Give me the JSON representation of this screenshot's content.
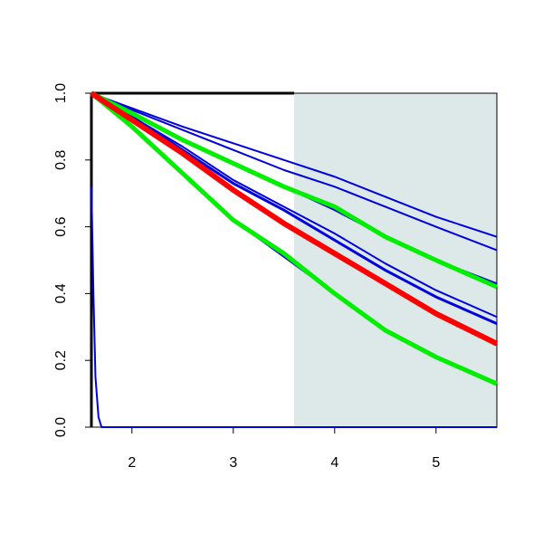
{
  "chart_data": {
    "type": "line",
    "x": [
      1.6,
      2.0,
      2.5,
      3.0,
      3.5,
      4.0,
      4.5,
      5.0,
      5.6
    ],
    "series": [
      {
        "color": "#0000dd",
        "width": 2,
        "values": [
          1,
          0.955,
          0.9,
          0.85,
          0.8,
          0.75,
          0.69,
          0.63,
          0.57
        ]
      },
      {
        "color": "#0000dd",
        "width": 2,
        "values": [
          1,
          0.95,
          0.89,
          0.83,
          0.77,
          0.72,
          0.66,
          0.6,
          0.53
        ]
      },
      {
        "color": "#0000dd",
        "width": 2,
        "values": [
          1,
          0.94,
          0.86,
          0.79,
          0.72,
          0.65,
          0.57,
          0.5,
          0.43
        ]
      },
      {
        "color": "#0000dd",
        "width": 2,
        "values": [
          1,
          0.93,
          0.84,
          0.74,
          0.66,
          0.58,
          0.49,
          0.41,
          0.33
        ]
      },
      {
        "color": "#0000dd",
        "width": 3,
        "values": [
          1,
          0.93,
          0.83,
          0.73,
          0.65,
          0.56,
          0.47,
          0.39,
          0.31
        ]
      },
      {
        "color": "#0000dd",
        "width": 2,
        "values": [
          1,
          0.9,
          0.76,
          0.62,
          0.51,
          0.4,
          0.29,
          0.21,
          0.13
        ]
      },
      {
        "color": "#0000dd",
        "width": 2,
        "x": [
          1.6,
          1.62,
          1.64,
          1.67,
          1.7,
          5.6
        ],
        "values": [
          0.72,
          0.4,
          0.15,
          0.03,
          0,
          0
        ]
      },
      {
        "color": "#00ee00",
        "width": 5,
        "values": [
          1,
          0.94,
          0.86,
          0.79,
          0.72,
          0.66,
          0.57,
          0.5,
          0.42
        ]
      },
      {
        "color": "#00ee00",
        "width": 5,
        "values": [
          1,
          0.9,
          0.76,
          0.62,
          0.52,
          0.4,
          0.29,
          0.21,
          0.13
        ]
      },
      {
        "color": "#ff0000",
        "width": 6,
        "values": [
          1,
          0.92,
          0.82,
          0.71,
          0.61,
          0.52,
          0.43,
          0.34,
          0.25
        ]
      }
    ],
    "shaded_xrange": [
      3.6,
      5.6
    ],
    "shade_color": "#dde9e9",
    "xlim": [
      1.6,
      5.6
    ],
    "ylim": [
      0,
      1
    ],
    "xticks": [
      2,
      3,
      4,
      5
    ],
    "yticks": [
      {
        "value": 0,
        "label": "0.0"
      },
      0.2,
      0.4,
      0.6,
      0.8,
      {
        "value": 1,
        "label": "1.0"
      }
    ]
  }
}
